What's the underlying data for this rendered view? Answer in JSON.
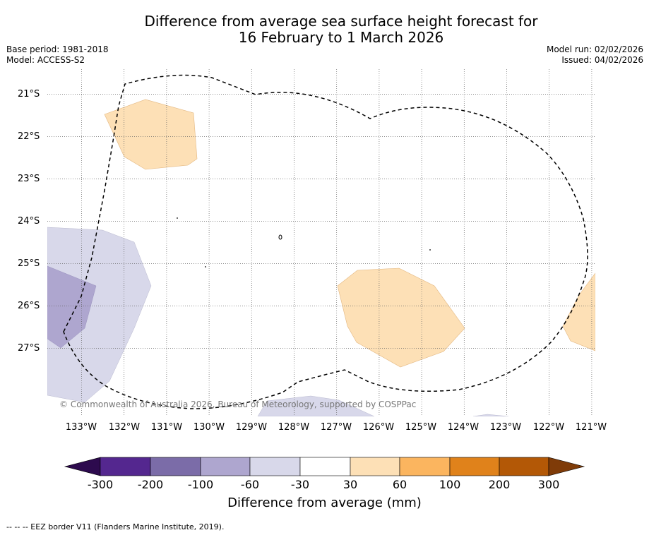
{
  "header": {
    "title_line1": "Difference from average sea surface height forecast for",
    "title_line2": "16 February to 1 March 2026",
    "base_period": "Base period: 1981-2018",
    "model": "Model: ACCESS-S2",
    "model_run": "Model run: 02/02/2026",
    "issued": "Issued: 04/02/2026"
  },
  "map": {
    "lat_labels": [
      "21°S",
      "22°S",
      "23°S",
      "24°S",
      "25°S",
      "26°S",
      "27°S"
    ],
    "lon_labels": [
      "133°W",
      "132°W",
      "131°W",
      "130°W",
      "129°W",
      "128°W",
      "127°W",
      "126°W",
      "125°W",
      "124°W",
      "123°W",
      "122°W",
      "121°W"
    ],
    "copyright": "© Commonwealth of Australia 2026, Bureau of Meteorology, supported by COSPPac"
  },
  "colorbar": {
    "title": "Difference from average (mm)",
    "ticks": [
      "-300",
      "-200",
      "-100",
      "-60",
      "-30",
      "30",
      "60",
      "100",
      "200",
      "300"
    ],
    "colors": [
      "#2d0a4e",
      "#54278f",
      "#7b6ca8",
      "#aea6cf",
      "#d8d8ea",
      "#ffffff",
      "#fde0b6",
      "#fbb55f",
      "#e0821b",
      "#b35806",
      "#7f3b08"
    ]
  },
  "footnote": "--  --  -- EEZ border V11 (Flanders Marine Institute, 2019)."
}
